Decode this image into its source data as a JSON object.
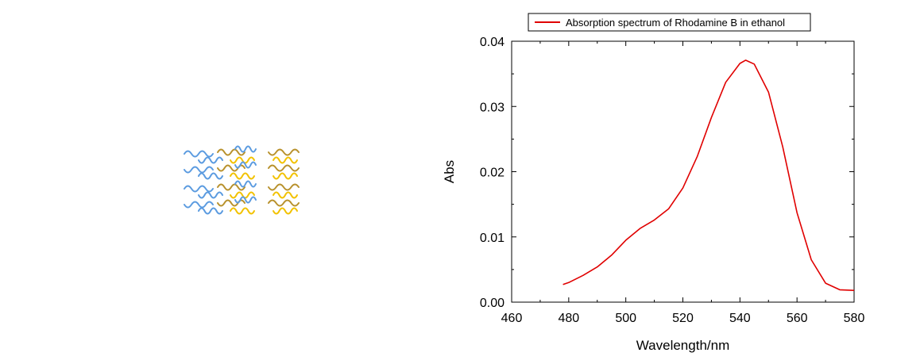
{
  "chart_data": {
    "type": "line",
    "xlabel": "Wavelength/nm",
    "ylabel": "Abs",
    "xlim": [
      460,
      580
    ],
    "ylim": [
      0,
      0.04
    ],
    "xticks": [
      "460",
      "480",
      "500",
      "520",
      "540",
      "560",
      "580"
    ],
    "xtick_values": [
      460,
      480,
      500,
      520,
      540,
      560,
      580
    ],
    "yticks": [
      "0.00",
      "0.01",
      "0.02",
      "0.03",
      "0.04"
    ],
    "ytick_values": [
      0,
      0.01,
      0.02,
      0.03,
      0.04
    ],
    "legend_position": "top",
    "grid": false,
    "series": [
      {
        "name": "Absorption spectrum of Rhodamine B in ethanol",
        "color": "#e00000",
        "x": [
          478,
          480,
          485,
          490,
          495,
          500,
          505,
          510,
          515,
          520,
          525,
          530,
          535,
          540,
          542,
          545,
          550,
          555,
          560,
          565,
          570,
          575,
          580
        ],
        "y": [
          0.0027,
          0.003,
          0.0041,
          0.0054,
          0.0072,
          0.0095,
          0.0113,
          0.0126,
          0.0143,
          0.0175,
          0.0223,
          0.0283,
          0.0337,
          0.0366,
          0.0371,
          0.0365,
          0.0322,
          0.0238,
          0.0137,
          0.0065,
          0.0029,
          0.0019,
          0.0018
        ]
      }
    ]
  },
  "illustration": {
    "name": "rhodamine-molecule-array",
    "colors": [
      "#5b9be0",
      "#b8912c",
      "#f2c200"
    ]
  }
}
